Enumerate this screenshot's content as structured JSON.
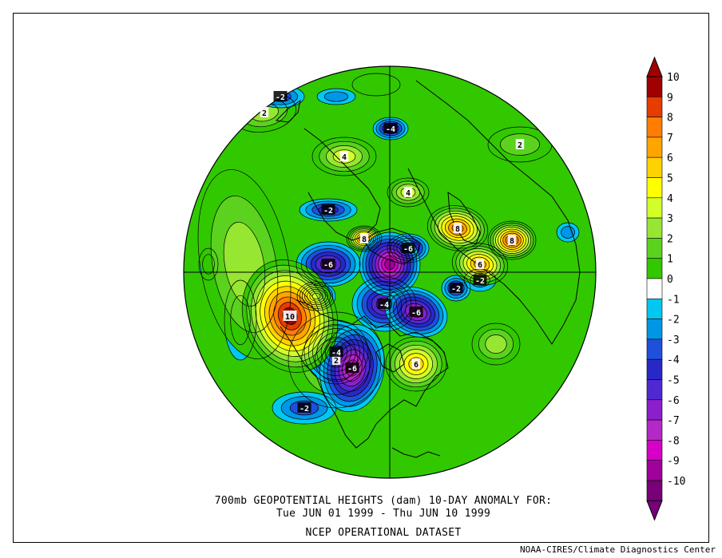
{
  "caption": {
    "line1": "700mb GEOPOTENTIAL HEIGHTS (dam)   10-DAY ANOMALY FOR:",
    "line2": "Tue JUN 01 1999 - Thu JUN 10 1999",
    "line3": "NCEP OPERATIONAL DATASET"
  },
  "credit": "NOAA-CIRES/Climate Diagnostics Center",
  "colorbar": {
    "levels": [
      {
        "label": "10",
        "color": "#a00000"
      },
      {
        "label": "9",
        "color": "#e63c00"
      },
      {
        "label": "8",
        "color": "#ff7d00"
      },
      {
        "label": "7",
        "color": "#ffa500"
      },
      {
        "label": "6",
        "color": "#ffd200"
      },
      {
        "label": "5",
        "color": "#ffff00"
      },
      {
        "label": "4",
        "color": "#d2ff28"
      },
      {
        "label": "3",
        "color": "#96e632"
      },
      {
        "label": "2",
        "color": "#5ad21e"
      },
      {
        "label": "1",
        "color": "#32c800"
      },
      {
        "label": "0",
        "color": "#ffffff"
      },
      {
        "label": "-1",
        "color": "#00c8f0"
      },
      {
        "label": "-2",
        "color": "#0096e6"
      },
      {
        "label": "-3",
        "color": "#1e50dc"
      },
      {
        "label": "-4",
        "color": "#2828c8"
      },
      {
        "label": "-5",
        "color": "#5028d2"
      },
      {
        "label": "-6",
        "color": "#8c1ecd"
      },
      {
        "label": "-7",
        "color": "#b428c8"
      },
      {
        "label": "-8",
        "color": "#d700c8"
      },
      {
        "label": "-9",
        "color": "#a0009b"
      },
      {
        "label": "-10",
        "color": "#780078"
      }
    ]
  },
  "anomaly_centers": [
    {
      "value": 10,
      "label": "10"
    },
    {
      "value": 8,
      "label": "8"
    },
    {
      "value": 9,
      "label": "8"
    },
    {
      "value": 8,
      "label": "8"
    },
    {
      "value": 7,
      "label": "6"
    },
    {
      "value": 6,
      "label": "6"
    },
    {
      "value": 4,
      "label": "4"
    },
    {
      "value": 3,
      "label": "2"
    },
    {
      "value": 4,
      "label": "4"
    },
    {
      "value": 3,
      "label": "2"
    },
    {
      "value": 3,
      "label": ""
    },
    {
      "value": 3,
      "label": ""
    },
    {
      "value": 2,
      "label": "2"
    },
    {
      "value": 1,
      "label": ""
    },
    {
      "value": -5,
      "label": "-4"
    },
    {
      "value": -6,
      "label": "-6"
    },
    {
      "value": -9,
      "label": ""
    },
    {
      "value": -8,
      "label": "-6"
    },
    {
      "value": -7,
      "label": "-6"
    },
    {
      "value": -7,
      "label": "-4"
    },
    {
      "value": -6,
      "label": "-6"
    },
    {
      "value": -7,
      "label": ""
    },
    {
      "value": -6,
      "label": "-4"
    },
    {
      "value": -4,
      "label": "-2"
    },
    {
      "value": -3,
      "label": "-2"
    },
    {
      "value": -4,
      "label": "-2"
    },
    {
      "value": -2,
      "label": "-2"
    },
    {
      "value": -3,
      "label": "-2"
    },
    {
      "value": -2,
      "label": ""
    },
    {
      "value": -2,
      "label": ""
    },
    {
      "value": -2,
      "label": ""
    },
    {
      "value": -2,
      "label": ""
    }
  ],
  "colors": {
    "frame": "#000000",
    "coast": "#000000",
    "contour": "#000000"
  }
}
